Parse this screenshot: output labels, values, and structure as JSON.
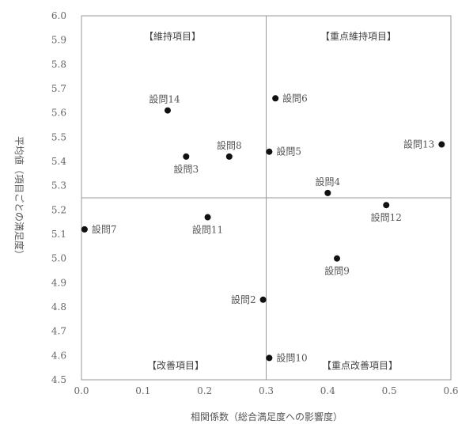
{
  "chart_data": {
    "type": "scatter",
    "xlabel": "相関係数（総合満足度への影響度）",
    "ylabel": "平均値（項目ごとの満足度）",
    "xlim": [
      0.0,
      0.6
    ],
    "ylim": [
      4.5,
      6.0
    ],
    "x_ticks": [
      "0.0",
      "0.1",
      "0.2",
      "0.3",
      "0.4",
      "0.5",
      "0.6"
    ],
    "y_ticks": [
      "4.5",
      "4.6",
      "4.7",
      "4.8",
      "4.9",
      "5.0",
      "5.1",
      "5.2",
      "5.3",
      "5.4",
      "5.5",
      "5.6",
      "5.7",
      "5.8",
      "5.9",
      "6.0"
    ],
    "x_divider": 0.3,
    "y_divider": 5.25,
    "quadrant_labels": {
      "top_left": "【維持項目】",
      "top_right": "【重点維持項目】",
      "bottom_left": "【改善項目】",
      "bottom_right": "【重点改善項目】"
    },
    "points": [
      {
        "label": "設問14",
        "x": 0.14,
        "y": 5.61,
        "label_pos": "above-left"
      },
      {
        "label": "設問6",
        "x": 0.315,
        "y": 5.66,
        "label_pos": "right"
      },
      {
        "label": "設問13",
        "x": 0.585,
        "y": 5.47,
        "label_pos": "left"
      },
      {
        "label": "設問5",
        "x": 0.305,
        "y": 5.44,
        "label_pos": "right"
      },
      {
        "label": "設問8",
        "x": 0.24,
        "y": 5.42,
        "label_pos": "above"
      },
      {
        "label": "設問3",
        "x": 0.17,
        "y": 5.42,
        "label_pos": "below"
      },
      {
        "label": "設問4",
        "x": 0.4,
        "y": 5.27,
        "label_pos": "above"
      },
      {
        "label": "設問12",
        "x": 0.495,
        "y": 5.22,
        "label_pos": "below"
      },
      {
        "label": "設問11",
        "x": 0.205,
        "y": 5.17,
        "label_pos": "below"
      },
      {
        "label": "設問7",
        "x": 0.005,
        "y": 5.12,
        "label_pos": "right"
      },
      {
        "label": "設問9",
        "x": 0.415,
        "y": 5.0,
        "label_pos": "below"
      },
      {
        "label": "設問2",
        "x": 0.295,
        "y": 4.83,
        "label_pos": "left"
      },
      {
        "label": "設問10",
        "x": 0.305,
        "y": 4.59,
        "label_pos": "right"
      }
    ]
  }
}
